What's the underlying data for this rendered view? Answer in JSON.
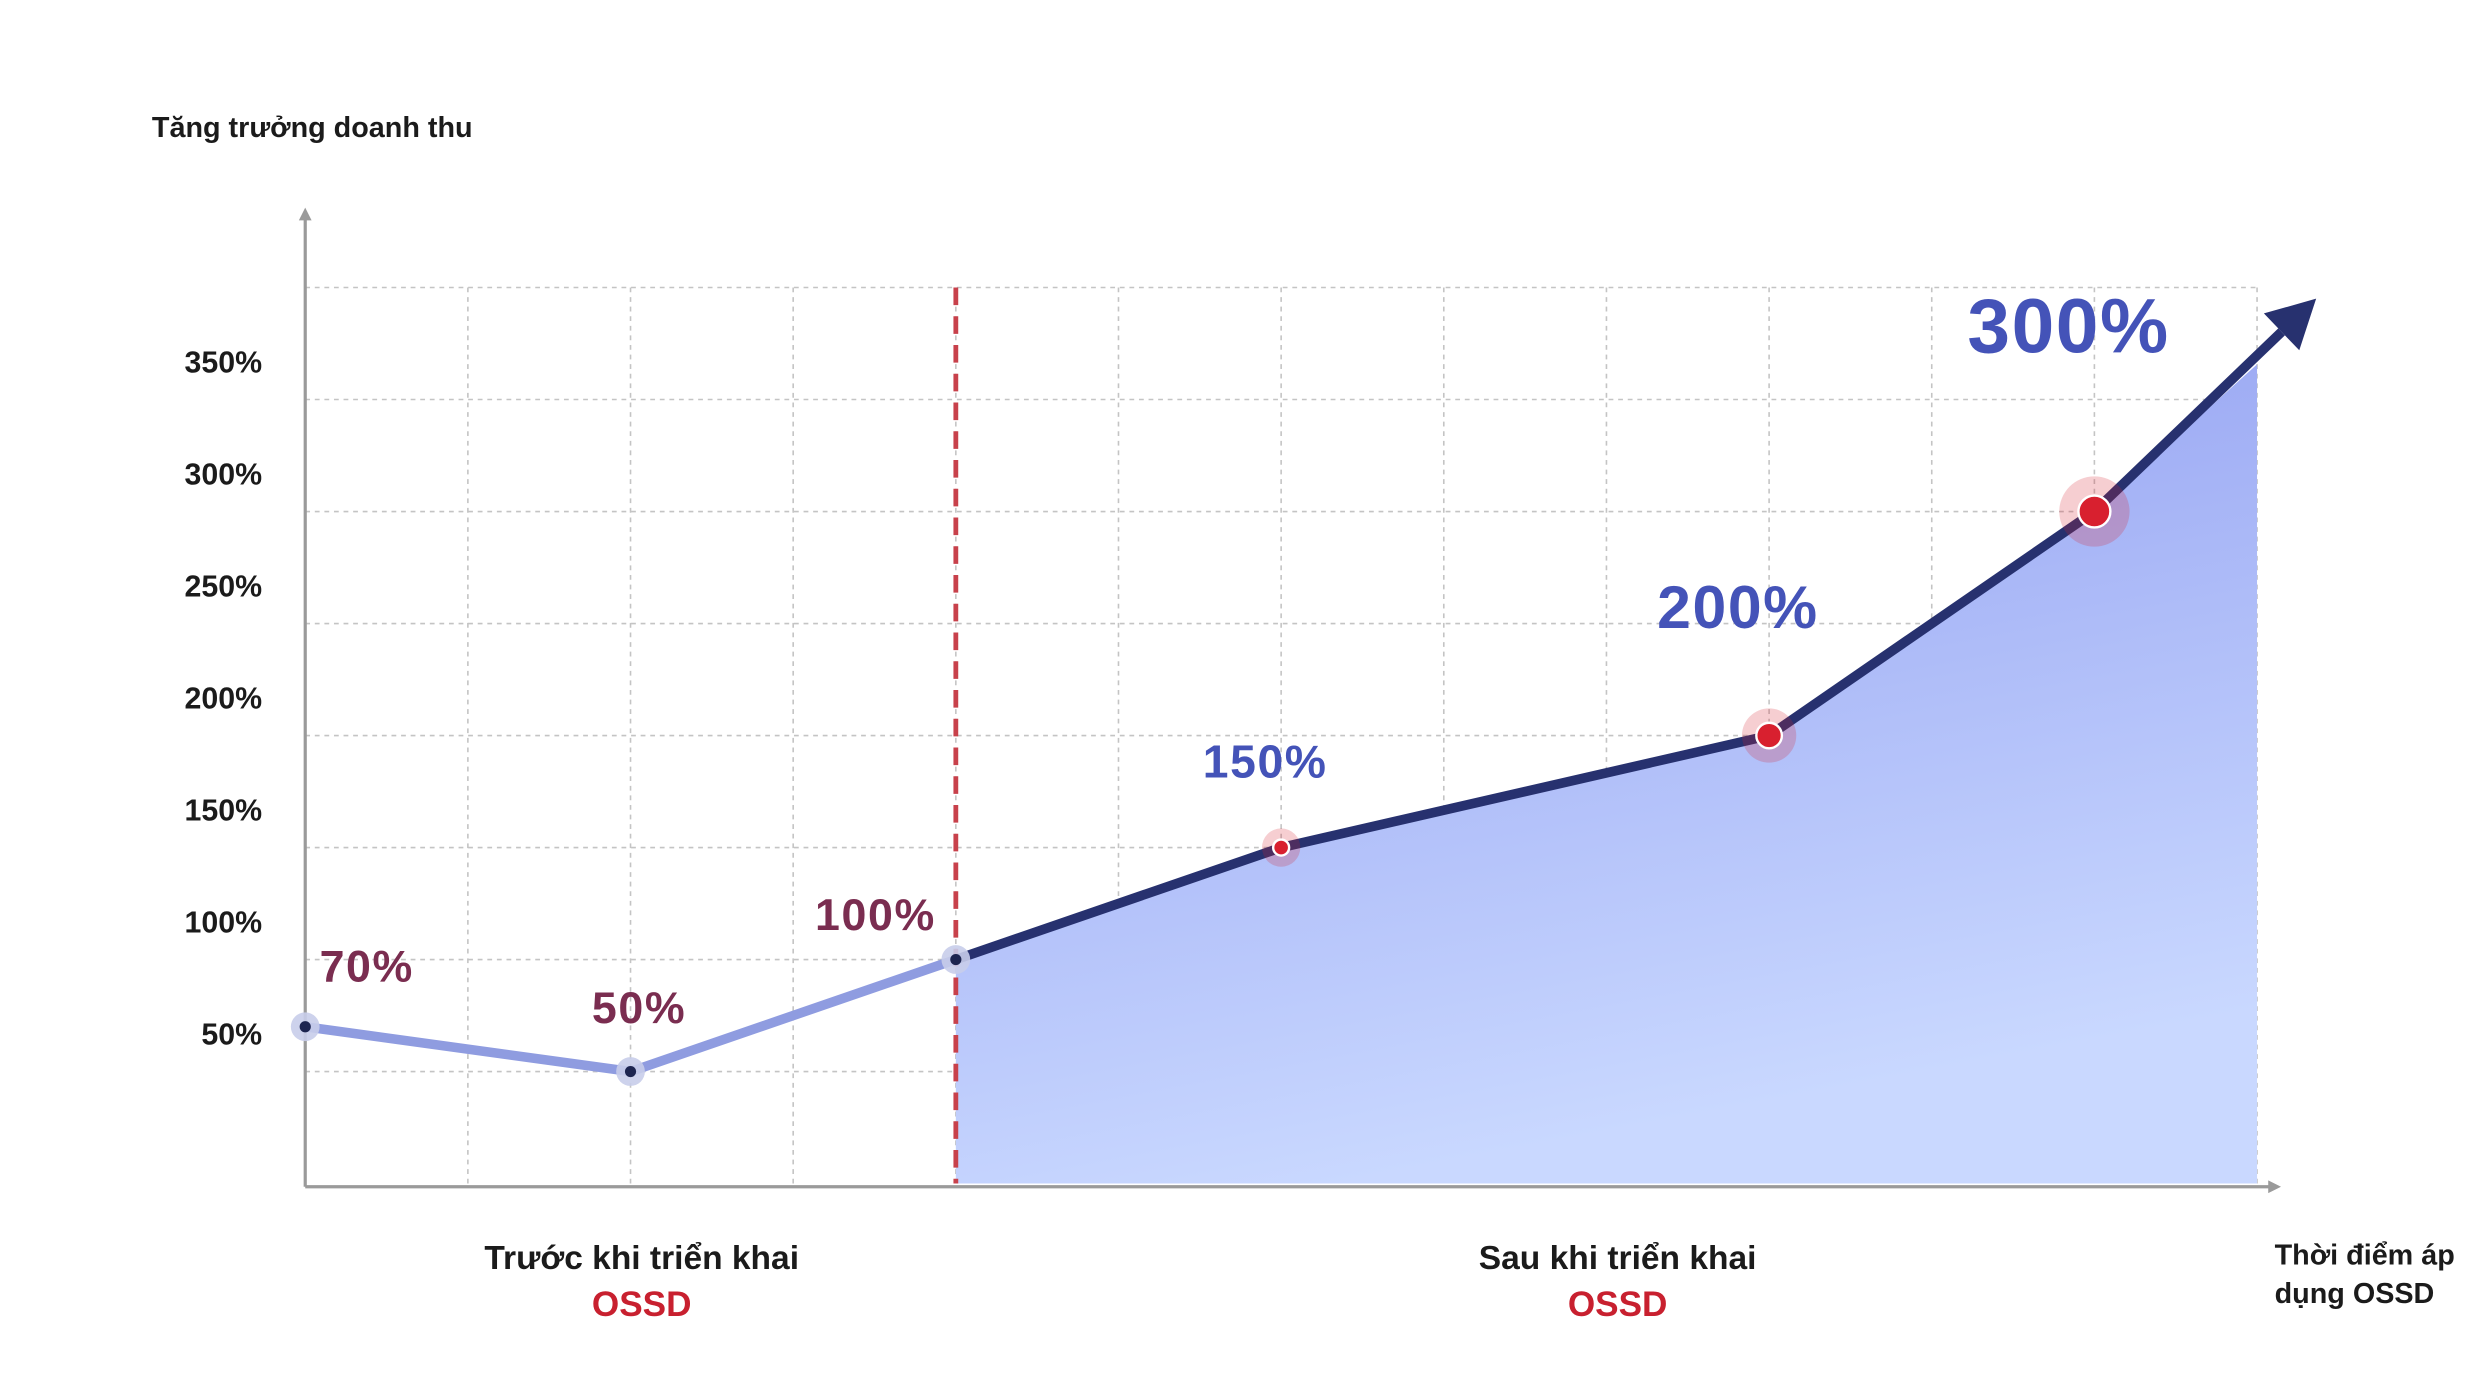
{
  "chart_data": {
    "type": "line",
    "y_label": "Tăng trưởng doanh thu",
    "x_label": [
      "Thời điểm áp",
      "dụng OSSD"
    ],
    "annotations": [
      {
        "x": 2,
        "lines": [
          "Trước khi triển khai",
          "OSSD"
        ]
      },
      {
        "x": 8,
        "lines": [
          "Sau khi triển khai",
          "OSSD"
        ]
      }
    ],
    "x": [
      0,
      2,
      4,
      6,
      9,
      11
    ],
    "values": [
      70,
      50,
      100,
      150,
      200,
      300
    ],
    "value_labels": [
      "70%",
      "50%",
      "100%",
      "150%",
      "200%",
      "300%"
    ],
    "xlim": [
      0,
      12
    ],
    "xticks": [
      0,
      1,
      2,
      3,
      4,
      5,
      6,
      7,
      8,
      9,
      10,
      11,
      12
    ],
    "ylim": [
      0,
      400
    ],
    "yticks": [
      {
        "value": 50,
        "label": "50%"
      },
      {
        "value": 100,
        "label": "100%"
      },
      {
        "value": 150,
        "label": "150%"
      },
      {
        "value": 200,
        "label": "200%"
      },
      {
        "value": 250,
        "label": "250%"
      },
      {
        "value": 300,
        "label": "300%"
      },
      {
        "value": 350,
        "label": "350%"
      }
    ],
    "grid": true,
    "divider": {
      "x": 4,
      "color": "#c8414b"
    },
    "line_colors": [
      "#8f9ce0",
      "#27316f"
    ],
    "label_colors": [
      "#7a2d50",
      "#4453b8"
    ],
    "point_color": "#d8202f"
  }
}
